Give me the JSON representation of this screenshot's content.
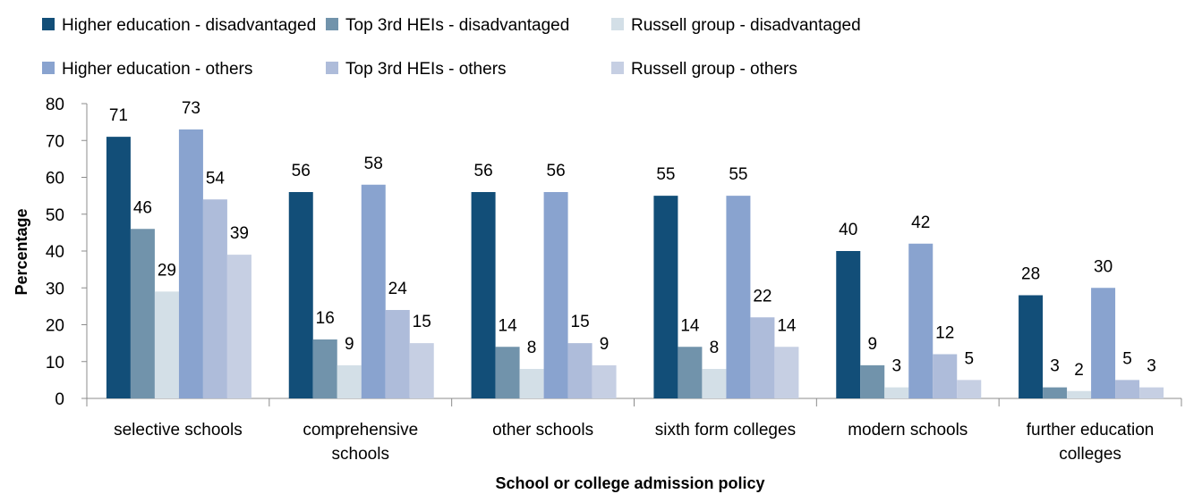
{
  "chart_data": {
    "type": "bar",
    "title": "",
    "xlabel": "School or college admission policy",
    "ylabel": "Percentage",
    "ylim": [
      0,
      80
    ],
    "yticks": [
      0,
      10,
      20,
      30,
      40,
      50,
      60,
      70,
      80
    ],
    "grid": false,
    "legend_position": "top",
    "categories": [
      [
        "selective schools"
      ],
      [
        "comprehensive",
        "schools"
      ],
      [
        "other schools"
      ],
      [
        "sixth form colleges"
      ],
      [
        "modern schools"
      ],
      [
        "further education",
        "colleges"
      ]
    ],
    "series": [
      {
        "name": "Higher education - disadvantaged",
        "color": "#124e78",
        "values": [
          71,
          56,
          56,
          55,
          40,
          28
        ]
      },
      {
        "name": "Top 3rd HEIs - disadvantaged",
        "color": "#7193ab",
        "values": [
          46,
          16,
          14,
          14,
          9,
          3
        ]
      },
      {
        "name": "Russell group - disadvantaged",
        "color": "#d3dfe7",
        "values": [
          29,
          9,
          8,
          8,
          3,
          2
        ]
      },
      {
        "name": "Higher education - others",
        "color": "#89a3cf",
        "values": [
          73,
          58,
          56,
          55,
          42,
          30
        ]
      },
      {
        "name": "Top 3rd HEIs - others",
        "color": "#aebcda",
        "values": [
          54,
          24,
          15,
          22,
          12,
          5
        ]
      },
      {
        "name": "Russell group - others",
        "color": "#c6cfe3",
        "values": [
          39,
          15,
          9,
          14,
          5,
          3
        ]
      }
    ]
  }
}
